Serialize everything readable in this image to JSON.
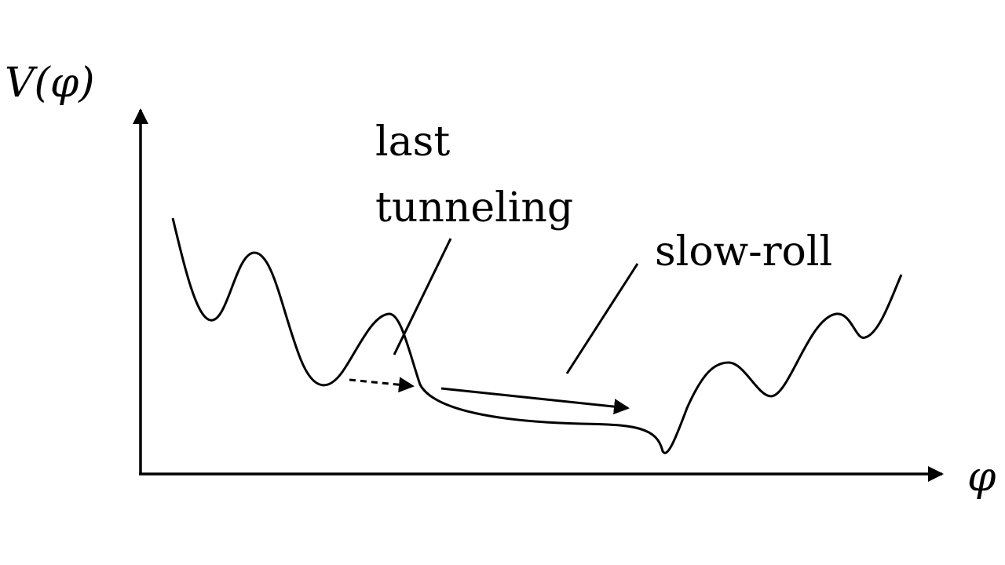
{
  "axes": {
    "y_label": "V(φ)",
    "x_label": "φ"
  },
  "annotations": {
    "last_tunneling_line1": "last",
    "last_tunneling_line2": "tunneling",
    "slow_roll": "slow-roll"
  },
  "colors": {
    "ink": "#000000",
    "background": "#ffffff"
  }
}
